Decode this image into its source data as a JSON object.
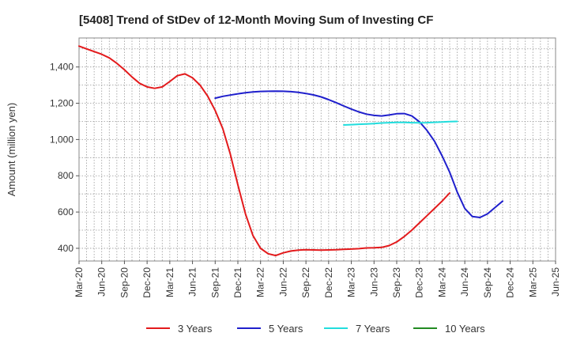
{
  "chart_data": {
    "type": "line",
    "title": "[5408]  Trend of StDev of 12-Month Moving Sum of Investing CF",
    "xlabel": "",
    "ylabel": "Amount (million yen)",
    "x_ticks": [
      "Mar-20",
      "Jun-20",
      "Sep-20",
      "Dec-20",
      "Mar-21",
      "Jun-21",
      "Sep-21",
      "Dec-21",
      "Mar-22",
      "Jun-22",
      "Sep-22",
      "Dec-22",
      "Mar-23",
      "Jun-23",
      "Sep-23",
      "Dec-23",
      "Mar-24",
      "Jun-24",
      "Sep-24",
      "Dec-24",
      "Mar-25",
      "Jun-25"
    ],
    "y_ticks": [
      400,
      600,
      800,
      1000,
      1200,
      1400
    ],
    "ylim": [
      330,
      1560
    ],
    "grid": true,
    "legend_position": "bottom",
    "series": [
      {
        "name": "3 Years",
        "color": "#e31a1c",
        "points": [
          [
            0,
            1515
          ],
          [
            1,
            1500
          ],
          [
            2,
            1485
          ],
          [
            3,
            1470
          ],
          [
            4,
            1450
          ],
          [
            5,
            1420
          ],
          [
            6,
            1385
          ],
          [
            7,
            1345
          ],
          [
            8,
            1310
          ],
          [
            9,
            1290
          ],
          [
            10,
            1282
          ],
          [
            11,
            1290
          ],
          [
            12,
            1320
          ],
          [
            13,
            1352
          ],
          [
            14,
            1362
          ],
          [
            15,
            1340
          ],
          [
            16,
            1300
          ],
          [
            17,
            1240
          ],
          [
            18,
            1160
          ],
          [
            19,
            1060
          ],
          [
            20,
            920
          ],
          [
            21,
            750
          ],
          [
            22,
            590
          ],
          [
            23,
            470
          ],
          [
            24,
            400
          ],
          [
            25,
            370
          ],
          [
            26,
            360
          ],
          [
            27,
            375
          ],
          [
            28,
            385
          ],
          [
            29,
            390
          ],
          [
            30,
            392
          ],
          [
            31,
            391
          ],
          [
            32,
            390
          ],
          [
            33,
            391
          ],
          [
            34,
            392
          ],
          [
            35,
            394
          ],
          [
            36,
            396
          ],
          [
            37,
            398
          ],
          [
            38,
            402
          ],
          [
            39,
            403
          ],
          [
            40,
            405
          ],
          [
            41,
            415
          ],
          [
            42,
            435
          ],
          [
            43,
            465
          ],
          [
            44,
            500
          ],
          [
            45,
            540
          ],
          [
            46,
            580
          ],
          [
            47,
            620
          ],
          [
            48,
            660
          ],
          [
            49,
            705
          ]
        ]
      },
      {
        "name": "5 Years",
        "color": "#1f1fcc",
        "points": [
          [
            18,
            1228
          ],
          [
            19,
            1238
          ],
          [
            20,
            1245
          ],
          [
            21,
            1252
          ],
          [
            22,
            1258
          ],
          [
            23,
            1262
          ],
          [
            24,
            1265
          ],
          [
            25,
            1266
          ],
          [
            26,
            1267
          ],
          [
            27,
            1266
          ],
          [
            28,
            1264
          ],
          [
            29,
            1260
          ],
          [
            30,
            1254
          ],
          [
            31,
            1246
          ],
          [
            32,
            1235
          ],
          [
            33,
            1220
          ],
          [
            34,
            1203
          ],
          [
            35,
            1185
          ],
          [
            36,
            1168
          ],
          [
            37,
            1152
          ],
          [
            38,
            1140
          ],
          [
            39,
            1133
          ],
          [
            40,
            1130
          ],
          [
            41,
            1135
          ],
          [
            42,
            1142
          ],
          [
            43,
            1143
          ],
          [
            44,
            1130
          ],
          [
            45,
            1098
          ],
          [
            46,
            1050
          ],
          [
            47,
            990
          ],
          [
            48,
            910
          ],
          [
            49,
            820
          ],
          [
            50,
            710
          ],
          [
            51,
            620
          ],
          [
            52,
            575
          ],
          [
            53,
            570
          ],
          [
            54,
            590
          ],
          [
            55,
            625
          ],
          [
            56,
            660
          ]
        ]
      },
      {
        "name": "7 Years",
        "color": "#22dddd",
        "points": [
          [
            35,
            1080
          ],
          [
            36,
            1082
          ],
          [
            37,
            1084
          ],
          [
            38,
            1086
          ],
          [
            39,
            1088
          ],
          [
            40,
            1091
          ],
          [
            41,
            1093
          ],
          [
            42,
            1094
          ],
          [
            43,
            1094
          ],
          [
            44,
            1093
          ],
          [
            45,
            1092
          ],
          [
            46,
            1093
          ],
          [
            47,
            1095
          ],
          [
            48,
            1097
          ],
          [
            49,
            1099
          ],
          [
            50,
            1100
          ]
        ]
      },
      {
        "name": "10 Years",
        "color": "#228b22",
        "points": []
      }
    ]
  }
}
